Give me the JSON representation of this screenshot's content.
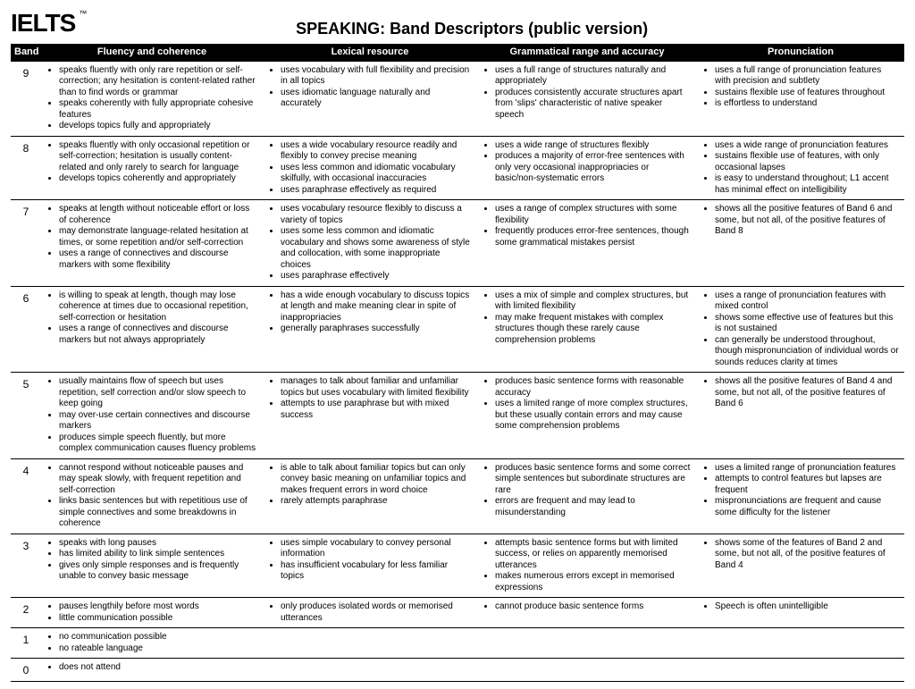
{
  "logo_text": "IELTS",
  "logo_tm": "™",
  "logo_fontsize": 28,
  "title": "SPEAKING: Band Descriptors (public version)",
  "title_fontsize": 18,
  "columns": [
    "Band",
    "Fluency and coherence",
    "Lexical resource",
    "Grammatical range and accuracy",
    "Pronunciation"
  ],
  "rows": [
    {
      "band": "9",
      "fc": [
        "speaks fluently with only rare repetition or self-correction; any hesitation is content-related rather than to find words or grammar",
        "speaks coherently with fully appropriate cohesive features",
        "develops topics fully and appropriately"
      ],
      "lr": [
        "uses vocabulary with full flexibility and precision in all topics",
        "uses idiomatic language naturally and accurately"
      ],
      "gra": [
        "uses a full range of structures naturally and appropriately",
        "produces consistently accurate structures apart from 'slips' characteristic of native speaker speech"
      ],
      "pr": [
        "uses a full range of pronunciation features with precision and subtlety",
        "sustains flexible use of features throughout",
        "is effortless to understand"
      ]
    },
    {
      "band": "8",
      "fc": [
        "speaks fluently with only occasional repetition or self-correction; hesitation is usually content-related and only rarely to search for language",
        "develops topics coherently and appropriately"
      ],
      "lr": [
        "uses a wide vocabulary resource readily and flexibly to convey precise meaning",
        "uses less common and idiomatic vocabulary skilfully, with occasional inaccuracies",
        "uses paraphrase effectively as required"
      ],
      "gra": [
        "uses a wide range of structures flexibly",
        "produces a majority of error-free sentences with only very occasional inappropriacies or basic/non-systematic errors"
      ],
      "pr": [
        "uses a wide range of pronunciation features",
        "sustains flexible use of features, with only occasional lapses",
        "is easy to understand throughout; L1 accent has minimal effect on intelligibility"
      ]
    },
    {
      "band": "7",
      "fc": [
        "speaks at length without noticeable effort or loss of coherence",
        "may demonstrate language-related hesitation at times, or some repetition and/or self-correction",
        "uses a range of connectives and discourse markers with some flexibility"
      ],
      "lr": [
        "uses vocabulary resource flexibly to discuss a variety of topics",
        "uses some less common and idiomatic vocabulary and shows some awareness of style and collocation, with some inappropriate choices",
        "uses paraphrase effectively"
      ],
      "gra": [
        "uses a range of complex structures with some flexibility",
        "frequently produces error-free sentences, though some grammatical mistakes persist"
      ],
      "pr": [
        "shows all the positive features of Band 6 and some, but not all, of the positive features of Band 8"
      ]
    },
    {
      "band": "6",
      "fc": [
        "is willing to speak at length, though may lose coherence at times due to occasional repetition, self-correction or hesitation",
        "uses a range of connectives and discourse markers but not always appropriately"
      ],
      "lr": [
        "has a wide enough vocabulary to discuss topics at length and make meaning clear in spite of inappropriacies",
        "generally paraphrases successfully"
      ],
      "gra": [
        "uses a mix of simple and complex structures, but with limited flexibility",
        "may make frequent mistakes with complex structures though these rarely cause comprehension problems"
      ],
      "pr": [
        "uses a range of pronunciation features with mixed control",
        "shows some effective use of features but this is not sustained",
        "can generally be understood throughout, though mispronunciation of individual words or sounds reduces clarity at times"
      ]
    },
    {
      "band": "5",
      "fc": [
        "usually maintains flow of speech but uses repetition, self correction and/or slow speech to keep going",
        "may over-use certain connectives and discourse markers",
        "produces simple speech fluently, but more complex communication causes fluency problems"
      ],
      "lr": [
        "manages to talk about familiar and unfamiliar topics but uses vocabulary with limited flexibility",
        "attempts to use paraphrase but with mixed success"
      ],
      "gra": [
        "produces basic sentence forms with reasonable accuracy",
        "uses a limited range of more complex structures, but these usually contain errors and may cause some comprehension problems"
      ],
      "pr": [
        "shows all the positive features of Band 4 and some, but not all, of the positive features of Band 6"
      ]
    },
    {
      "band": "4",
      "fc": [
        "cannot respond without noticeable pauses and may speak slowly, with frequent repetition and self-correction",
        "links basic sentences but with repetitious use of simple connectives and some breakdowns in coherence"
      ],
      "lr": [
        "is able to talk about familiar topics but can only convey basic meaning on unfamiliar topics and makes frequent errors in word choice",
        "rarely attempts paraphrase"
      ],
      "gra": [
        "produces basic sentence forms and some correct simple sentences but subordinate structures are rare",
        "errors are frequent and may lead to misunderstanding"
      ],
      "pr": [
        "uses a limited range of pronunciation features",
        "attempts to control features but lapses are frequent",
        "mispronunciations are frequent and cause some difficulty for the listener"
      ]
    },
    {
      "band": "3",
      "fc": [
        "speaks with long pauses",
        "has limited ability to link simple sentences",
        "gives only simple responses and is frequently unable to convey basic message"
      ],
      "lr": [
        "uses simple vocabulary to convey personal information",
        "has insufficient vocabulary for less familiar topics"
      ],
      "gra": [
        "attempts basic sentence forms but with limited success, or relies on apparently memorised utterances",
        "makes numerous errors except in memorised expressions"
      ],
      "pr": [
        "shows some of the features of Band 2 and some, but not all, of the positive features of Band 4"
      ]
    },
    {
      "band": "2",
      "fc": [
        "pauses lengthily before most words",
        "little communication possible"
      ],
      "lr": [
        "only produces isolated words or memorised utterances"
      ],
      "gra": [
        "cannot produce basic sentence forms"
      ],
      "pr": [
        "Speech is often unintelligible"
      ]
    },
    {
      "band": "1",
      "fc": [
        "no communication possible",
        "no rateable language"
      ],
      "lr": [],
      "gra": [],
      "pr": [],
      "merge": true
    },
    {
      "band": "0",
      "fc": [
        "does not attend"
      ],
      "lr": [],
      "gra": [],
      "pr": [],
      "merge": true
    }
  ]
}
